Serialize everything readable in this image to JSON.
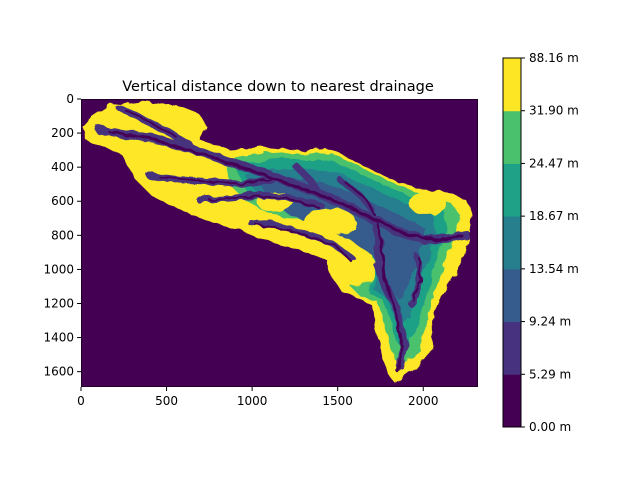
{
  "chart_data": {
    "type": "heatmap",
    "title": "Vertical distance down to nearest drainage",
    "xlabel": "",
    "ylabel": "",
    "xlim": [
      0,
      2320
    ],
    "ylim": [
      1690,
      0
    ],
    "x_ticks": [
      0,
      500,
      1000,
      1500,
      2000
    ],
    "y_ticks": [
      0,
      200,
      400,
      600,
      800,
      1000,
      1200,
      1400,
      1600
    ],
    "grid": false,
    "colorbar": {
      "levels": [
        {
          "label": "0.00 m",
          "value": 0.0,
          "color": "#440154"
        },
        {
          "label": "5.29 m",
          "value": 5.29,
          "color": "#46327e"
        },
        {
          "label": "9.24 m",
          "value": 9.24,
          "color": "#365c8d"
        },
        {
          "label": "13.54 m",
          "value": 13.54,
          "color": "#277f8e"
        },
        {
          "label": "18.67 m",
          "value": 18.67,
          "color": "#1fa187"
        },
        {
          "label": "24.47 m",
          "value": 24.47,
          "color": "#4ac16d"
        },
        {
          "label": "31.90 m",
          "value": 31.9,
          "color": "#fde725"
        },
        {
          "label": "88.16 m",
          "value": 88.16,
          "color": "#fde725"
        }
      ]
    },
    "background_value_color": "#440154"
  }
}
